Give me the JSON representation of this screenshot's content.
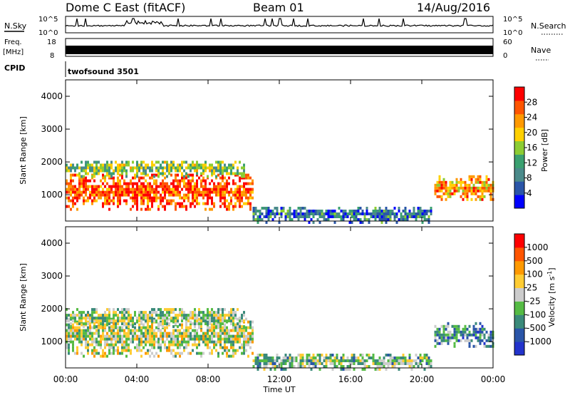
{
  "header": {
    "title": "Dome C East (fitACF)",
    "beam": "Beam 01",
    "date": "14/Aug/2016"
  },
  "strip_panels": {
    "nsky_label": "N.Sky",
    "nsearch_label": "N.Search",
    "nsky_ticks": [
      "10^5",
      "10^0"
    ],
    "nsearch_ticks": [
      "10^5",
      "10^0"
    ],
    "freq_label_1": "Freq.",
    "freq_label_2": "[MHz]",
    "freq_ticks": [
      "18",
      "8"
    ],
    "nave_label": "Nave",
    "nave_ticks": [
      "60",
      "0"
    ],
    "cpid_label": "CPID",
    "cpid_value": "twofsound 3501"
  },
  "chart_data": [
    {
      "type": "heatmap",
      "name": "power",
      "ylabel": "Slant Range [km]",
      "ylim": [
        200,
        4500
      ],
      "yticks": [
        "1000",
        "2000",
        "3000",
        "4000"
      ],
      "xlim": [
        0,
        24
      ],
      "colorbar": {
        "label": "Power [dB]",
        "ticks": [
          "28",
          "24",
          "20",
          "16",
          "12",
          "8",
          "4"
        ],
        "colors": [
          "#0000ff",
          "#2a55a8",
          "#4a8a8a",
          "#3aa070",
          "#8ccc33",
          "#ffd000",
          "#ff9900",
          "#ff5500",
          "#ff0000"
        ]
      },
      "regions": [
        {
          "t0": 0.0,
          "t1": 10.5,
          "r0": 600,
          "r1": 1700,
          "level": 0.85
        },
        {
          "t0": 0.0,
          "t1": 10.0,
          "r0": 1600,
          "r1": 2100,
          "level": 0.45
        },
        {
          "t0": 10.5,
          "t1": 20.5,
          "r0": 200,
          "r1": 700,
          "level": 0.25
        },
        {
          "t0": 20.7,
          "t1": 24.0,
          "r0": 900,
          "r1": 1600,
          "level": 0.7
        }
      ]
    },
    {
      "type": "heatmap",
      "name": "velocity",
      "ylabel": "Slant Range [km]",
      "ylim": [
        200,
        4500
      ],
      "yticks": [
        "1000",
        "2000",
        "3000",
        "4000"
      ],
      "xlim": [
        0,
        24
      ],
      "xticks": [
        "00:00",
        "04:00",
        "08:00",
        "12:00",
        "16:00",
        "20:00",
        "00:00"
      ],
      "xlabel": "Time UT",
      "colorbar": {
        "label": "Velocity [m s-1]",
        "ticks": [
          "1000",
          "500",
          "100",
          "25",
          "-25",
          "-100",
          "-500",
          "-1000"
        ],
        "colors": [
          "#2233cc",
          "#2a55a8",
          "#3a8a7a",
          "#55bb44",
          "#cccccc",
          "#ffcc33",
          "#ff9900",
          "#ff5500",
          "#ff0000"
        ]
      },
      "regions": [
        {
          "t0": 0.0,
          "t1": 10.5,
          "r0": 600,
          "r1": 1800,
          "level": 0.5
        },
        {
          "t0": 0.0,
          "t1": 10.0,
          "r0": 1500,
          "r1": 2100,
          "level": 0.45
        },
        {
          "t0": 10.5,
          "t1": 20.5,
          "r0": 200,
          "r1": 700,
          "level": 0.4
        },
        {
          "t0": 20.7,
          "t1": 24.0,
          "r0": 900,
          "r1": 1600,
          "level": 0.3
        }
      ]
    }
  ]
}
